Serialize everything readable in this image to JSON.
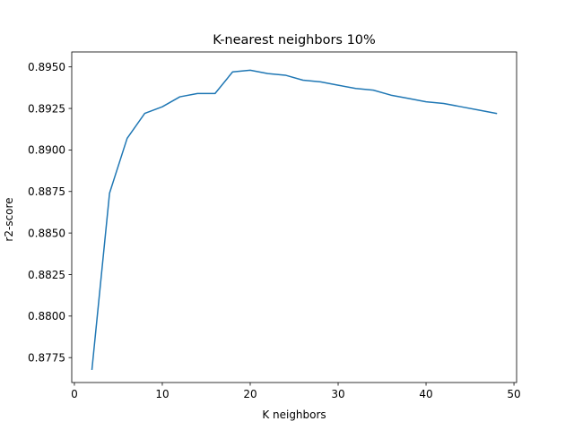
{
  "chart_data": {
    "type": "line",
    "title": "K-nearest neighbors 10%",
    "xlabel": "K neighbors",
    "ylabel": "r2-score",
    "xlim": [
      -0.3,
      50.3
    ],
    "ylim": [
      0.876,
      0.8959
    ],
    "xticks": [
      0,
      10,
      20,
      30,
      40,
      50
    ],
    "xtick_labels": [
      "0",
      "10",
      "20",
      "30",
      "40",
      "50"
    ],
    "yticks": [
      0.8775,
      0.88,
      0.8825,
      0.885,
      0.8875,
      0.89,
      0.8925,
      0.895
    ],
    "ytick_labels": [
      "0.8775",
      "0.8800",
      "0.8825",
      "0.8850",
      "0.8875",
      "0.8900",
      "0.8925",
      "0.8950"
    ],
    "grid": false,
    "series": [
      {
        "color": "#1f77b4",
        "x": [
          2,
          4,
          6,
          8,
          10,
          12,
          14,
          16,
          18,
          20,
          22,
          24,
          26,
          28,
          30,
          32,
          34,
          36,
          38,
          40,
          42,
          44,
          46,
          48
        ],
        "y": [
          0.8768,
          0.8874,
          0.8907,
          0.8922,
          0.8926,
          0.8932,
          0.8934,
          0.8934,
          0.8947,
          0.8948,
          0.8946,
          0.8945,
          0.8942,
          0.8941,
          0.8939,
          0.8937,
          0.8936,
          0.8933,
          0.8931,
          0.8929,
          0.8928,
          0.8926,
          0.8924,
          0.8922
        ]
      }
    ]
  }
}
